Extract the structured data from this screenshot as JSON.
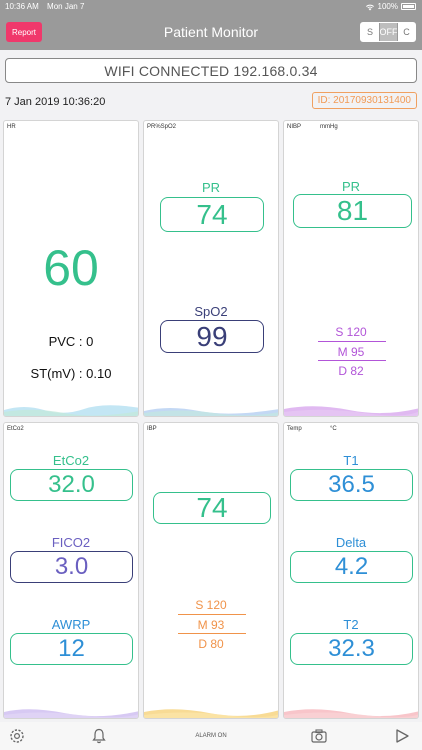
{
  "status_bar": {
    "time": "10:36 AM",
    "date": "Mon Jan 7",
    "battery": "100%"
  },
  "nav": {
    "report_label": "Report",
    "title": "Patient Monitor",
    "segments": [
      "S",
      "OFF",
      "C"
    ]
  },
  "connection": {
    "text": "WIFI CONNECTED 192.168.0.34"
  },
  "header": {
    "datetime": "7 Jan 2019 10:36:20",
    "patient_id": "ID: 20170930131400"
  },
  "panels": {
    "hr": {
      "label": "HR",
      "value": "60",
      "pvc": "PVC : 0",
      "st": "ST(mV) : 0.10"
    },
    "spo2": {
      "label": "PR%SpO2",
      "pr_label": "PR",
      "pr_value": "74",
      "spo2_label": "SpO2",
      "spo2_value": "99"
    },
    "nibp": {
      "label": "NIBP",
      "unit": "mmHg",
      "pr_label": "PR",
      "pr_value": "81",
      "systolic": "S 120",
      "mean": "M 95",
      "diastolic": "D 82"
    },
    "etco2": {
      "label": "EtCo2",
      "etco2_label": "EtCo2",
      "etco2_value": "32.0",
      "fico2_label": "FICO2",
      "fico2_value": "3.0",
      "awrp_label": "AWRP",
      "awrp_value": "12"
    },
    "ibp": {
      "label": "IBP",
      "value": "74",
      "systolic": "S 120",
      "mean": "M 93",
      "diastolic": "D 80"
    },
    "temp": {
      "label": "Temp",
      "unit": "°C",
      "t1_label": "T1",
      "t1_value": "36.5",
      "delta_label": "Delta",
      "delta_value": "4.2",
      "t2_label": "T2",
      "t2_value": "32.3"
    }
  },
  "tab_bar": {
    "alarm_label": "ALARM ON"
  },
  "colors": {
    "green": "#35c08c",
    "navy": "#3a3f78",
    "purple": "#b255d8",
    "blue": "#2e8fd6",
    "orange": "#f0934a",
    "report": "#f0386b"
  },
  "icons": [
    "gear-icon",
    "bell-icon",
    "camera-icon",
    "play-icon",
    "wifi-icon",
    "battery-icon"
  ]
}
